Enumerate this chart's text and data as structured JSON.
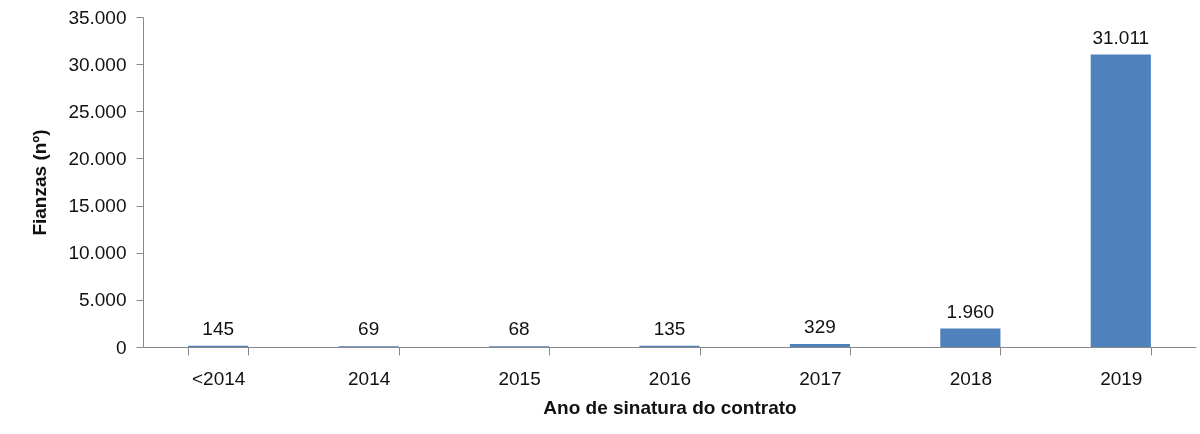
{
  "chart_data": {
    "type": "bar",
    "xlabel": "Ano de sinatura do contrato",
    "ylabel": "Fianzas (nº)",
    "categories": [
      "<2014",
      "2014",
      "2015",
      "2016",
      "2017",
      "2018",
      "2019"
    ],
    "values": [
      145,
      69,
      68,
      135,
      329,
      1960,
      31011
    ],
    "value_labels": [
      "145",
      "69",
      "68",
      "135",
      "329",
      "1.960",
      "31.011"
    ],
    "color": "#4f81bd",
    "ylim": [
      0,
      35000
    ],
    "yticks": [
      0,
      {
        "value": 5000,
        "label": "5.000"
      },
      {
        "value": 10000,
        "label": "10.000"
      },
      {
        "value": 15000,
        "label": "15.000"
      },
      {
        "value": 20000,
        "label": "20.000"
      },
      {
        "value": 25000,
        "label": "25.000"
      },
      {
        "value": 30000,
        "label": "30.000"
      },
      {
        "value": 35000,
        "label": "35.000"
      }
    ]
  }
}
